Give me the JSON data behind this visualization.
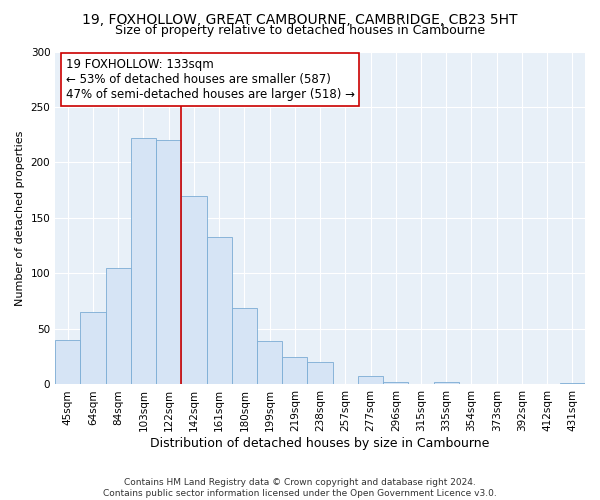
{
  "title": "19, FOXHOLLOW, GREAT CAMBOURNE, CAMBRIDGE, CB23 5HT",
  "subtitle": "Size of property relative to detached houses in Cambourne",
  "xlabel": "Distribution of detached houses by size in Cambourne",
  "ylabel": "Number of detached properties",
  "bar_labels": [
    "45sqm",
    "64sqm",
    "84sqm",
    "103sqm",
    "122sqm",
    "142sqm",
    "161sqm",
    "180sqm",
    "199sqm",
    "219sqm",
    "238sqm",
    "257sqm",
    "277sqm",
    "296sqm",
    "315sqm",
    "335sqm",
    "354sqm",
    "373sqm",
    "392sqm",
    "412sqm",
    "431sqm"
  ],
  "bar_values": [
    40,
    65,
    105,
    222,
    220,
    170,
    133,
    69,
    39,
    25,
    20,
    0,
    8,
    2,
    0,
    2,
    0,
    0,
    0,
    0,
    1
  ],
  "bar_color_fill": "#d6e4f5",
  "bar_color_edge": "#7bacd4",
  "highlight_line_color": "#cc0000",
  "annotation_text_line1": "19 FOXHOLLOW: 133sqm",
  "annotation_text_line2": "← 53% of detached houses are smaller (587)",
  "annotation_text_line3": "47% of semi-detached houses are larger (518) →",
  "ylim": [
    0,
    300
  ],
  "yticks": [
    0,
    50,
    100,
    150,
    200,
    250,
    300
  ],
  "axes_bg_color": "#e8f0f8",
  "background_color": "#ffffff",
  "grid_color": "#ffffff",
  "footnote": "Contains HM Land Registry data © Crown copyright and database right 2024.\nContains public sector information licensed under the Open Government Licence v3.0.",
  "title_fontsize": 10,
  "subtitle_fontsize": 9,
  "xlabel_fontsize": 9,
  "ylabel_fontsize": 8,
  "tick_fontsize": 7.5,
  "annotation_fontsize": 8.5,
  "footnote_fontsize": 6.5
}
